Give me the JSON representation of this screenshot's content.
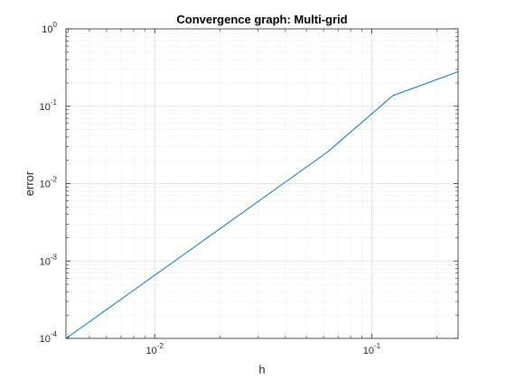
{
  "chart_data": {
    "type": "line",
    "title": "Convergence graph: Multi-grid",
    "xlabel": "h",
    "ylabel": "error",
    "xscale": "log",
    "yscale": "log",
    "xlim": [
      0.0039,
      0.25
    ],
    "ylim": [
      0.0001,
      1
    ],
    "grid": true,
    "minor_grid": true,
    "x_ticks": [
      {
        "value": 0.01,
        "base": "10",
        "exp": "-2"
      },
      {
        "value": 0.1,
        "base": "10",
        "exp": "-1"
      }
    ],
    "y_ticks": [
      {
        "value": 0.0001,
        "base": "10",
        "exp": "-4"
      },
      {
        "value": 0.001,
        "base": "10",
        "exp": "-3"
      },
      {
        "value": 0.01,
        "base": "10",
        "exp": "-2"
      },
      {
        "value": 0.1,
        "base": "10",
        "exp": "-1"
      },
      {
        "value": 1,
        "base": "10",
        "exp": "0"
      }
    ],
    "series": [
      {
        "color": "#0072BD",
        "x": [
          0.00390625,
          0.0078125,
          0.015625,
          0.03125,
          0.0625,
          0.125,
          0.25
        ],
        "y": [
          0.0001,
          0.0004,
          0.0016,
          0.0064,
          0.0256,
          0.137,
          0.28
        ]
      }
    ]
  }
}
